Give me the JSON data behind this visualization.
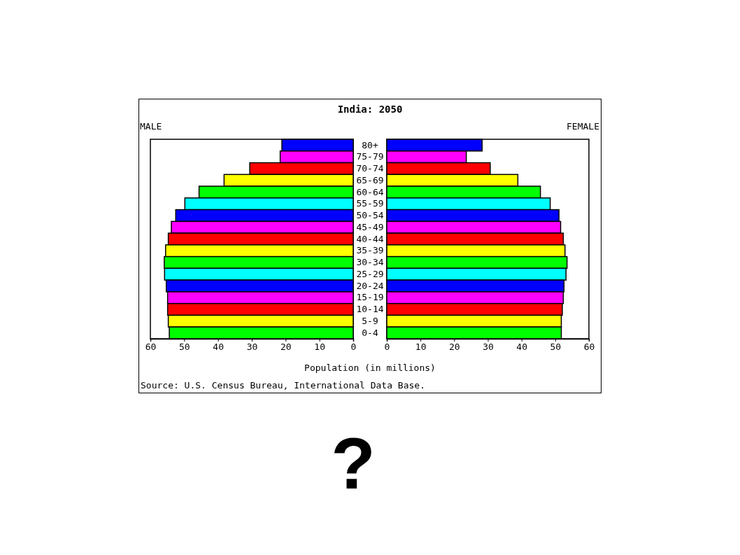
{
  "chart_data": [
    {
      "type": "bar",
      "orientation": "horizontal",
      "title": "India: 2050",
      "xlabel": "Population (in millions)",
      "categories": [
        "80+",
        "75-79",
        "70-74",
        "65-69",
        "60-64",
        "55-59",
        "50-54",
        "45-49",
        "40-44",
        "35-39",
        "30-34",
        "25-29",
        "20-24",
        "15-19",
        "10-14",
        "5-9",
        "0-4"
      ],
      "series": [
        {
          "name": "MALE",
          "colors": [
            "#0000ff",
            "#ff00ff",
            "#ff0000",
            "#ffff00",
            "#00ff00",
            "#00ffff",
            "#0000ff",
            "#ff00ff",
            "#ff0000",
            "#ffff00",
            "#00ff00",
            "#00ffff",
            "#0000ff",
            "#ff00ff",
            "#ff0000",
            "#ffff00",
            "#00ff00"
          ],
          "values": [
            21.1,
            21.6,
            30.6,
            38.2,
            45.6,
            49.8,
            52.5,
            53.8,
            54.7,
            55.5,
            55.9,
            55.8,
            55.3,
            54.9,
            54.9,
            54.7,
            54.4
          ]
        }
      ],
      "xlim": [
        60,
        0
      ],
      "xticks": [
        60,
        50,
        40,
        30,
        20,
        10,
        0
      ],
      "annotations": [
        "Source: U.S. Census Bureau, International Data Base.",
        "?"
      ]
    },
    {
      "type": "bar",
      "orientation": "horizontal",
      "categories": [
        null,
        null,
        null,
        null,
        null,
        null,
        null,
        null,
        null,
        null,
        null,
        null,
        null,
        null,
        null,
        null,
        null
      ],
      "series": [
        {
          "name": "FEMALE",
          "colors": [
            "#0000ff",
            "#ff00ff",
            "#ff0000",
            "#ffff00",
            "#00ff00",
            "#00ffff",
            "#0000ff",
            "#ff00ff",
            "#ff0000",
            "#ffff00",
            "#00ff00",
            "#00ffff",
            "#0000ff",
            "#ff00ff",
            "#ff0000",
            "#ffff00",
            "#00ff00"
          ],
          "values": [
            28.3,
            23.6,
            30.7,
            38.9,
            45.6,
            48.5,
            51.1,
            51.6,
            52.4,
            52.9,
            53.5,
            53.2,
            52.6,
            52.4,
            52.1,
            51.8,
            51.8
          ]
        }
      ],
      "xlim": [
        0,
        60
      ],
      "xticks": [
        0,
        10,
        20,
        30,
        40,
        50,
        60
      ]
    }
  ]
}
